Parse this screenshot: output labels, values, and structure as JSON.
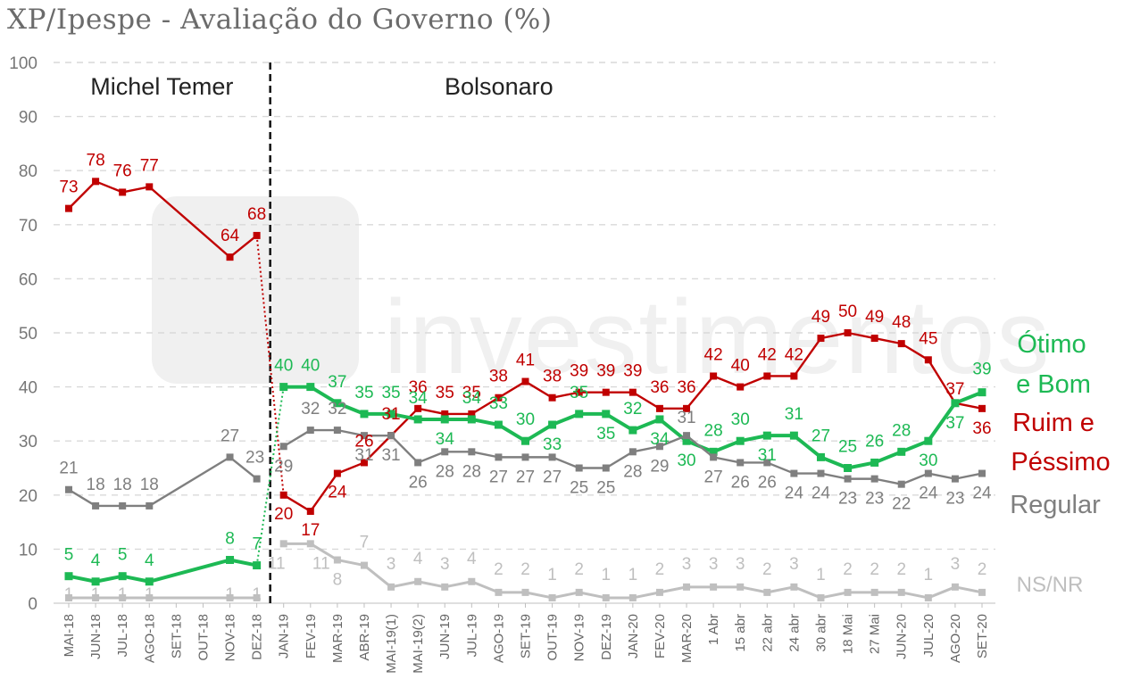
{
  "colors": {
    "otimo_bom": "#1db954",
    "ruim_pessimo": "#c00000",
    "regular": "#7f7f7f",
    "ns_nr": "#bfbfbf",
    "grid": "#d9d9d9",
    "watermark": "#f0f0f0"
  },
  "watermark": "xp investimentos",
  "chart_data": {
    "type": "line",
    "title": "XP/Ipespe - Avaliação do Governo (%)",
    "xlabel": "",
    "ylabel": "",
    "ylim": [
      0,
      100
    ],
    "yticks": [
      0,
      10,
      20,
      30,
      40,
      50,
      60,
      70,
      80,
      90,
      100
    ],
    "grid": true,
    "periods": [
      {
        "label": "Michel Temer",
        "from": "MAI-18",
        "to": "DEZ-18"
      },
      {
        "label": "Bolsonaro",
        "from": "JAN-19",
        "to": "SET-20"
      }
    ],
    "categories": [
      "MAI-18",
      "JUN-18",
      "JUL-18",
      "AGO-18",
      "SET-18",
      "OUT-18",
      "NOV-18",
      "DEZ-18",
      "JAN-19",
      "FEV-19",
      "MAR-19",
      "ABR-19",
      "MAI-19(1)",
      "MAI-19(2)",
      "JUN-19",
      "JUL-19",
      "AGO-19",
      "SET-19",
      "OUT-19",
      "NOV-19",
      "DEZ-19",
      "JAN-20",
      "FEV-20",
      "MAR-20",
      "1 Abr",
      "15 abr",
      "22 abr",
      "24 abr",
      "30 abr",
      "18 Mai",
      "27 Mai",
      "JUN-20",
      "JUL-20",
      "AGO-20",
      "SET-20"
    ],
    "series": [
      {
        "name": "Ruim e Péssimo",
        "key": "ruim_pessimo",
        "values": [
          73,
          78,
          76,
          77,
          null,
          null,
          64,
          68,
          20,
          17,
          24,
          26,
          31,
          36,
          35,
          35,
          38,
          41,
          38,
          39,
          39,
          39,
          36,
          36,
          42,
          40,
          42,
          42,
          49,
          50,
          49,
          48,
          45,
          37,
          36
        ]
      },
      {
        "name": "Ótimo e Bom",
        "key": "otimo_bom",
        "values": [
          5,
          4,
          5,
          4,
          null,
          null,
          8,
          7,
          40,
          40,
          37,
          35,
          35,
          34,
          34,
          34,
          33,
          30,
          33,
          35,
          35,
          32,
          34,
          30,
          28,
          30,
          31,
          31,
          27,
          25,
          26,
          28,
          30,
          37,
          39
        ]
      },
      {
        "name": "Regular",
        "key": "regular",
        "values": [
          21,
          18,
          18,
          18,
          null,
          null,
          27,
          23,
          29,
          32,
          32,
          31,
          31,
          26,
          28,
          28,
          27,
          27,
          27,
          25,
          25,
          28,
          29,
          31,
          27,
          26,
          26,
          24,
          24,
          23,
          23,
          22,
          24,
          23,
          24
        ]
      },
      {
        "name": "NS/NR",
        "key": "ns_nr",
        "values": [
          1,
          1,
          1,
          1,
          null,
          null,
          1,
          1,
          11,
          11,
          8,
          7,
          3,
          4,
          3,
          4,
          2,
          2,
          1,
          2,
          1,
          1,
          2,
          3,
          3,
          3,
          2,
          3,
          1,
          2,
          2,
          2,
          1,
          3,
          2
        ]
      }
    ],
    "legend": [
      {
        "key": "otimo_bom",
        "lines": [
          "Ótimo",
          "e Bom"
        ]
      },
      {
        "key": "ruim_pessimo",
        "lines": [
          "Ruim e",
          "Péssimo"
        ]
      },
      {
        "key": "regular",
        "lines": [
          "Regular"
        ]
      },
      {
        "key": "ns_nr",
        "lines": [
          "NS/NR"
        ]
      }
    ]
  }
}
